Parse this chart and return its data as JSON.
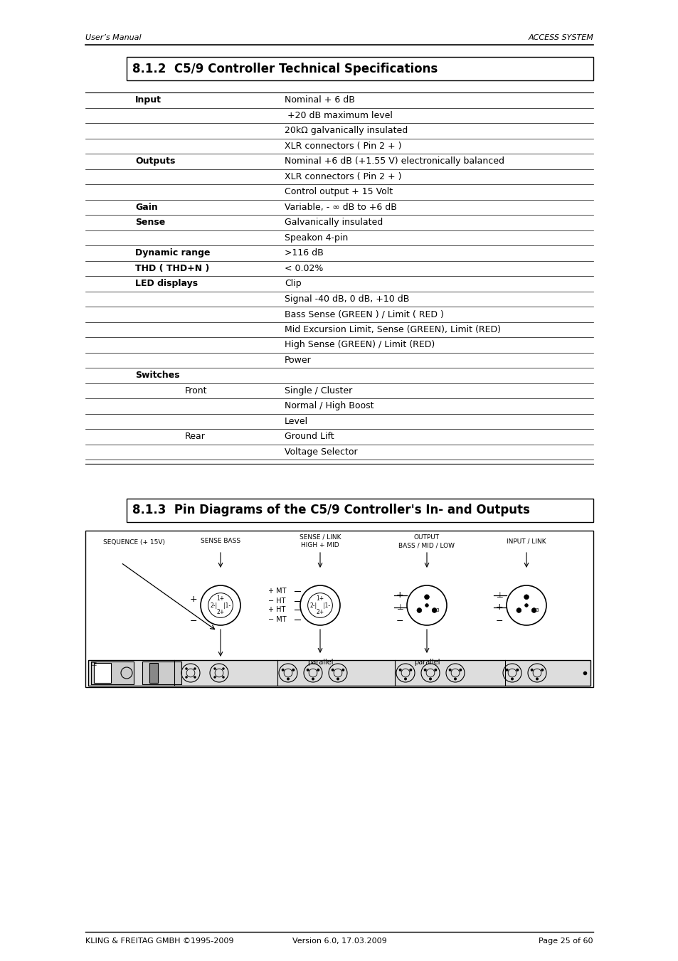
{
  "page_header_left": "User’s Manual",
  "page_header_right": "ACCESS SYSTEM",
  "section_title": "8.1.2  C5/9 Controller Technical Specifications",
  "section2_title": "8.1.3  Pin Diagrams of the C5/9 Controller's In- and Outputs",
  "footer_left": "KLING & FREITAG GMBH ©1995-2009",
  "footer_center": "Version 6.0, 17.03.2009",
  "footer_right": "Page 25 of 60",
  "table_rows": [
    {
      "label": "Input",
      "bold": true,
      "value": "Nominal + 6 dB",
      "indent": false
    },
    {
      "label": "",
      "bold": false,
      "value": " +20 dB maximum level",
      "indent": false
    },
    {
      "label": "",
      "bold": false,
      "value": "20kΩ galvanically insulated",
      "indent": false
    },
    {
      "label": "",
      "bold": false,
      "value": "XLR connectors ( Pin 2 + )",
      "indent": false
    },
    {
      "label": "Outputs",
      "bold": true,
      "value": "Nominal +6 dB (+1.55 V) electronically balanced",
      "indent": false
    },
    {
      "label": "",
      "bold": false,
      "value": "XLR connectors ( Pin 2 + )",
      "indent": false
    },
    {
      "label": "",
      "bold": false,
      "value": "Control output + 15 Volt",
      "indent": false
    },
    {
      "label": "Gain",
      "bold": true,
      "value": "Variable, - ∞ dB to +6 dB",
      "indent": false
    },
    {
      "label": "Sense",
      "bold": true,
      "value": "Galvanically insulated",
      "indent": false
    },
    {
      "label": "",
      "bold": false,
      "value": "Speakon 4-pin",
      "indent": false
    },
    {
      "label": "Dynamic range",
      "bold": true,
      "value": ">116 dB",
      "indent": false
    },
    {
      "label": "THD ( THD+N )",
      "bold": true,
      "value": "< 0.02%",
      "indent": false
    },
    {
      "label": "LED displays",
      "bold": true,
      "value": "Clip",
      "indent": false
    },
    {
      "label": "",
      "bold": false,
      "value": "Signal -40 dB, 0 dB, +10 dB",
      "indent": false
    },
    {
      "label": "",
      "bold": false,
      "value": "Bass Sense (GREEN ) / Limit ( RED )",
      "indent": false
    },
    {
      "label": "",
      "bold": false,
      "value": "Mid Excursion Limit, Sense (GREEN), Limit (RED)",
      "indent": false
    },
    {
      "label": "",
      "bold": false,
      "value": "High Sense (GREEN) / Limit (RED)",
      "indent": false
    },
    {
      "label": "",
      "bold": false,
      "value": "Power",
      "indent": false
    },
    {
      "label": "Switches",
      "bold": true,
      "value": "",
      "indent": false
    },
    {
      "label": "Front",
      "bold": false,
      "value": "Single / Cluster",
      "indent": true
    },
    {
      "label": "",
      "bold": false,
      "value": "Normal / High Boost",
      "indent": false
    },
    {
      "label": "",
      "bold": false,
      "value": "Level",
      "indent": false
    },
    {
      "label": "Rear",
      "bold": false,
      "value": "Ground Lift",
      "indent": true
    },
    {
      "label": "",
      "bold": false,
      "value": "Voltage Selector",
      "indent": false
    }
  ],
  "bg_color": "#ffffff",
  "text_color": "#000000"
}
